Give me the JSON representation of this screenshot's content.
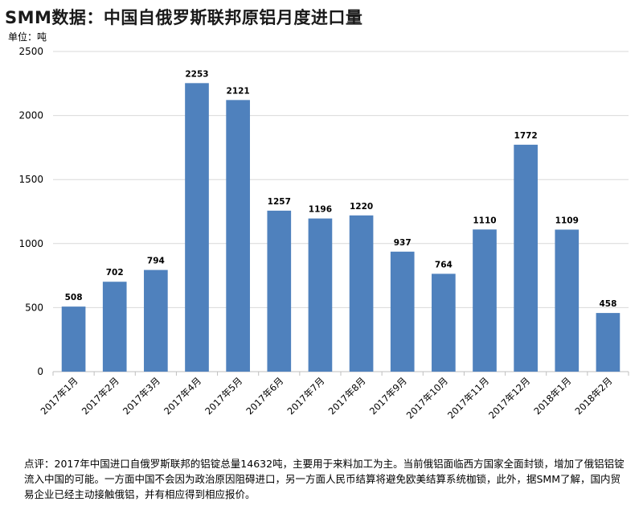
{
  "title": "SMM数据：中国自俄罗斯联邦原铝月度进口量",
  "unit_label": "单位：吨",
  "comment": "点评：2017年中国进口自俄罗斯联邦的铝锭总量14632吨，主要用于来料加工为主。当前俄铝面临西方国家全面封锁，增加了俄铝铝锭流入中国的可能。一方面中国不会因为政治原因阻碍进口，另一方面人民币结算将避免欧美结算系统枷锁，此外，据SMM了解，国内贸易企业已经主动接触俄铝，并有相应得到相应报价。",
  "chart_data": {
    "type": "bar",
    "categories": [
      "2017年1月",
      "2017年2月",
      "2017年3月",
      "2017年4月",
      "2017年5月",
      "2017年6月",
      "2017年7月",
      "2017年8月",
      "2017年9月",
      "2017年10月",
      "2017年11月",
      "2017年12月",
      "2018年1月",
      "2018年2月"
    ],
    "values": [
      508,
      702,
      794,
      2253,
      2121,
      1257,
      1196,
      1220,
      937,
      764,
      1110,
      1772,
      1109,
      458
    ],
    "ylim": [
      0,
      2500
    ],
    "yticks": [
      0,
      500,
      1000,
      1500,
      2000,
      2500
    ],
    "bar_color": "#4f81bd",
    "grid": true,
    "legend": "none"
  }
}
